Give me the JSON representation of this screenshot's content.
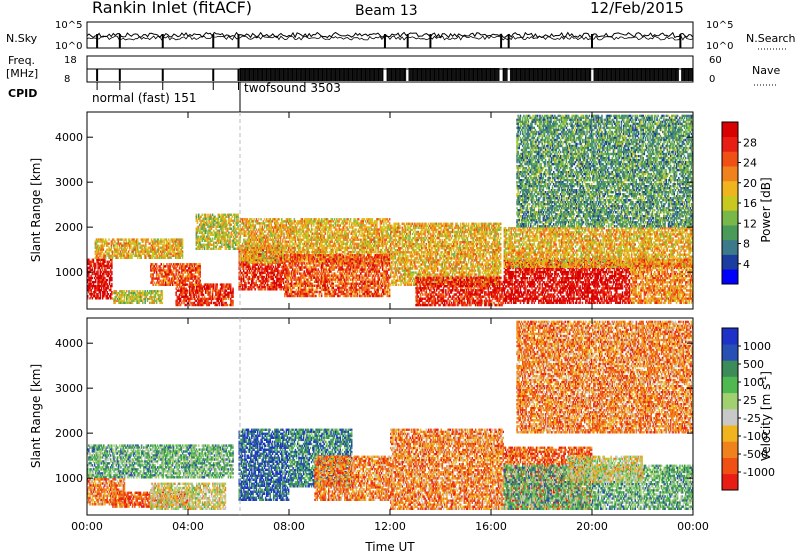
{
  "header": {
    "title": "Rankin Inlet (fitACF)",
    "beam": "Beam 13",
    "date": "12/Feb/2015"
  },
  "status_panels": {
    "nsky_label": "N.Sky",
    "nsearch_label": "N.Search",
    "freq_label_1": "Freq.",
    "freq_label_2": "[MHz]",
    "nave_label": "Nave",
    "cpid_label": "CPID",
    "noise_left_ticks": [
      "10^5",
      "10^0"
    ],
    "noise_right_ticks": [
      "10^5",
      "10^0"
    ],
    "freq_left_ticks": [
      "18",
      "8"
    ],
    "nave_right_ticks": [
      "60",
      "0"
    ],
    "cpid_segments": [
      {
        "start_hour": 0,
        "label": "normal (fast) 151"
      },
      {
        "start_hour": 6,
        "label": "twofsound 3503"
      }
    ],
    "noise_drop_hours": [
      0.4,
      1.3,
      3.0,
      5.0,
      6.0,
      11.8,
      12.7,
      13.6,
      16.4,
      16.7,
      20.0,
      23.5
    ],
    "nave_gap_hours": [
      6.0,
      11.8,
      12.7,
      16.4,
      16.7,
      20.0,
      23.5
    ],
    "cpid_change_hours": [
      0.4,
      1.3,
      3.0,
      5.0,
      6.0
    ]
  },
  "chart_data": [
    {
      "type": "heatmap",
      "panel": "power",
      "xlabel": "",
      "ylabel": "Slant Range [km]",
      "xlim": [
        0,
        24
      ],
      "ylim": [
        180,
        4560
      ],
      "y_ticks": [
        1000,
        2000,
        3000,
        4000
      ],
      "x_ticks": [
        0,
        4,
        8,
        12,
        16,
        20,
        24
      ],
      "colorbar": {
        "label": "Power [dB]",
        "ticks": [
          "28",
          "24",
          "20",
          "16",
          "12",
          "8",
          "4"
        ],
        "colors": [
          "#0000ff",
          "#1c3ca0",
          "#3c7a8a",
          "#4a9a5a",
          "#78b848",
          "#c8c81e",
          "#f0b41e",
          "#f0821e",
          "#f05014",
          "#e81e14",
          "#d80000"
        ]
      },
      "regions": [
        {
          "t0": 0.0,
          "t1": 1.0,
          "r0": 400,
          "r1": 1300,
          "level": 10
        },
        {
          "t0": 0.3,
          "t1": 3.8,
          "r0": 1300,
          "r1": 1750,
          "level": 6
        },
        {
          "t0": 1.0,
          "t1": 3.0,
          "r0": 300,
          "r1": 600,
          "level": 5
        },
        {
          "t0": 3.5,
          "t1": 5.8,
          "r0": 250,
          "r1": 750,
          "level": 9
        },
        {
          "t0": 2.5,
          "t1": 4.5,
          "r0": 700,
          "r1": 1200,
          "level": 8
        },
        {
          "t0": 4.3,
          "t1": 6.0,
          "r0": 1500,
          "r1": 2300,
          "level": 5
        },
        {
          "t0": 6.0,
          "t1": 7.8,
          "r0": 600,
          "r1": 1600,
          "level": 9
        },
        {
          "t0": 6.0,
          "t1": 12.0,
          "r0": 1200,
          "r1": 2200,
          "level": 6
        },
        {
          "t0": 7.8,
          "t1": 12.0,
          "r0": 450,
          "r1": 1400,
          "level": 8
        },
        {
          "t0": 12.0,
          "t1": 16.4,
          "r0": 700,
          "r1": 2100,
          "level": 6
        },
        {
          "t0": 13.0,
          "t1": 16.5,
          "r0": 250,
          "r1": 900,
          "level": 9
        },
        {
          "t0": 16.5,
          "t1": 21.5,
          "r0": 300,
          "r1": 1300,
          "level": 10
        },
        {
          "t0": 16.5,
          "t1": 24.0,
          "r0": 1100,
          "r1": 2000,
          "level": 6
        },
        {
          "t0": 21.5,
          "t1": 24.0,
          "r0": 300,
          "r1": 1300,
          "level": 7
        },
        {
          "t0": 17.0,
          "t1": 24.0,
          "r0": 2000,
          "r1": 4500,
          "level": 3
        }
      ]
    },
    {
      "type": "heatmap",
      "panel": "velocity",
      "xlabel": "Time UT",
      "ylabel": "Slant Range [km]",
      "xlim": [
        0,
        24
      ],
      "ylim": [
        180,
        4560
      ],
      "y_ticks": [
        1000,
        2000,
        3000,
        4000
      ],
      "x_ticks": [
        0,
        4,
        8,
        12,
        16,
        20,
        24
      ],
      "x_tick_labels": [
        "00:00",
        "04:00",
        "08:00",
        "12:00",
        "16:00",
        "20:00",
        "00:00"
      ],
      "colorbar": {
        "label": "Velocity [m s^-1]",
        "ticks": [
          "1000",
          "500",
          "100",
          "25",
          "-25",
          "-100",
          "-500",
          "-1000"
        ],
        "colors": [
          "#e81e14",
          "#f05014",
          "#f0821e",
          "#f0b41e",
          "#c8c8c8",
          "#a0d070",
          "#50b850",
          "#3c8c5a",
          "#2850b4",
          "#1e32c8"
        ]
      },
      "regions": [
        {
          "t0": 0.0,
          "t1": 5.8,
          "r0": 1000,
          "r1": 1750,
          "level": 6
        },
        {
          "t0": 0.0,
          "t1": 1.5,
          "r0": 400,
          "r1": 1000,
          "level": 2
        },
        {
          "t0": 1.0,
          "t1": 4.0,
          "r0": 350,
          "r1": 700,
          "level": 1
        },
        {
          "t0": 2.5,
          "t1": 5.5,
          "r0": 300,
          "r1": 900,
          "level": 4
        },
        {
          "t0": 6.0,
          "t1": 8.0,
          "r0": 500,
          "r1": 2100,
          "level": 8
        },
        {
          "t0": 8.0,
          "t1": 10.5,
          "r0": 800,
          "r1": 2100,
          "level": 7
        },
        {
          "t0": 9.0,
          "t1": 12.0,
          "r0": 500,
          "r1": 1500,
          "level": 2
        },
        {
          "t0": 12.0,
          "t1": 16.5,
          "r0": 300,
          "r1": 2100,
          "level": 2
        },
        {
          "t0": 16.5,
          "t1": 20.0,
          "r0": 300,
          "r1": 1700,
          "level": 1
        },
        {
          "t0": 16.5,
          "t1": 24.0,
          "r0": 300,
          "r1": 1300,
          "level": 6
        },
        {
          "t0": 19.0,
          "t1": 22.0,
          "r0": 900,
          "r1": 1500,
          "level": 4
        },
        {
          "t0": 17.0,
          "t1": 24.0,
          "r0": 2000,
          "r1": 4500,
          "level": 2
        }
      ]
    }
  ]
}
